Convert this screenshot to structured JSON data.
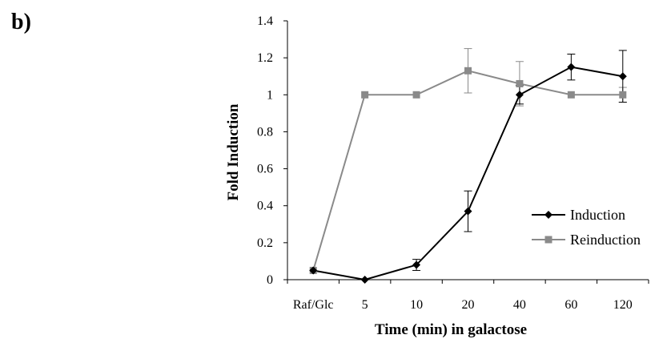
{
  "panel_label": "b)",
  "chart_data": {
    "type": "line",
    "categories": [
      "Raf/Glc",
      "5",
      "10",
      "20",
      "40",
      "60",
      "120"
    ],
    "xlabel": "Time (min) in galactose",
    "ylabel": "Fold Induction",
    "ylim": [
      0,
      1.4
    ],
    "yticks": [
      "0",
      "0.2",
      "0.4",
      "0.6",
      "0.8",
      "1",
      "1.2",
      "1.4"
    ],
    "grid": false,
    "legend_position": "right",
    "series": [
      {
        "name": "Induction",
        "color": "#000000",
        "marker": "diamond",
        "values": [
          0.05,
          0.0,
          0.08,
          0.37,
          1.0,
          1.15,
          1.1
        ],
        "errors": [
          0.0,
          0.0,
          0.03,
          0.11,
          0.05,
          0.07,
          0.14
        ]
      },
      {
        "name": "Reinduction",
        "color": "#8a8a8a",
        "marker": "square",
        "values": [
          0.05,
          1.0,
          1.0,
          1.13,
          1.06,
          1.0,
          1.0
        ],
        "errors": [
          0.0,
          0.0,
          0.0,
          0.12,
          0.12,
          0.0,
          0.04
        ]
      }
    ]
  }
}
